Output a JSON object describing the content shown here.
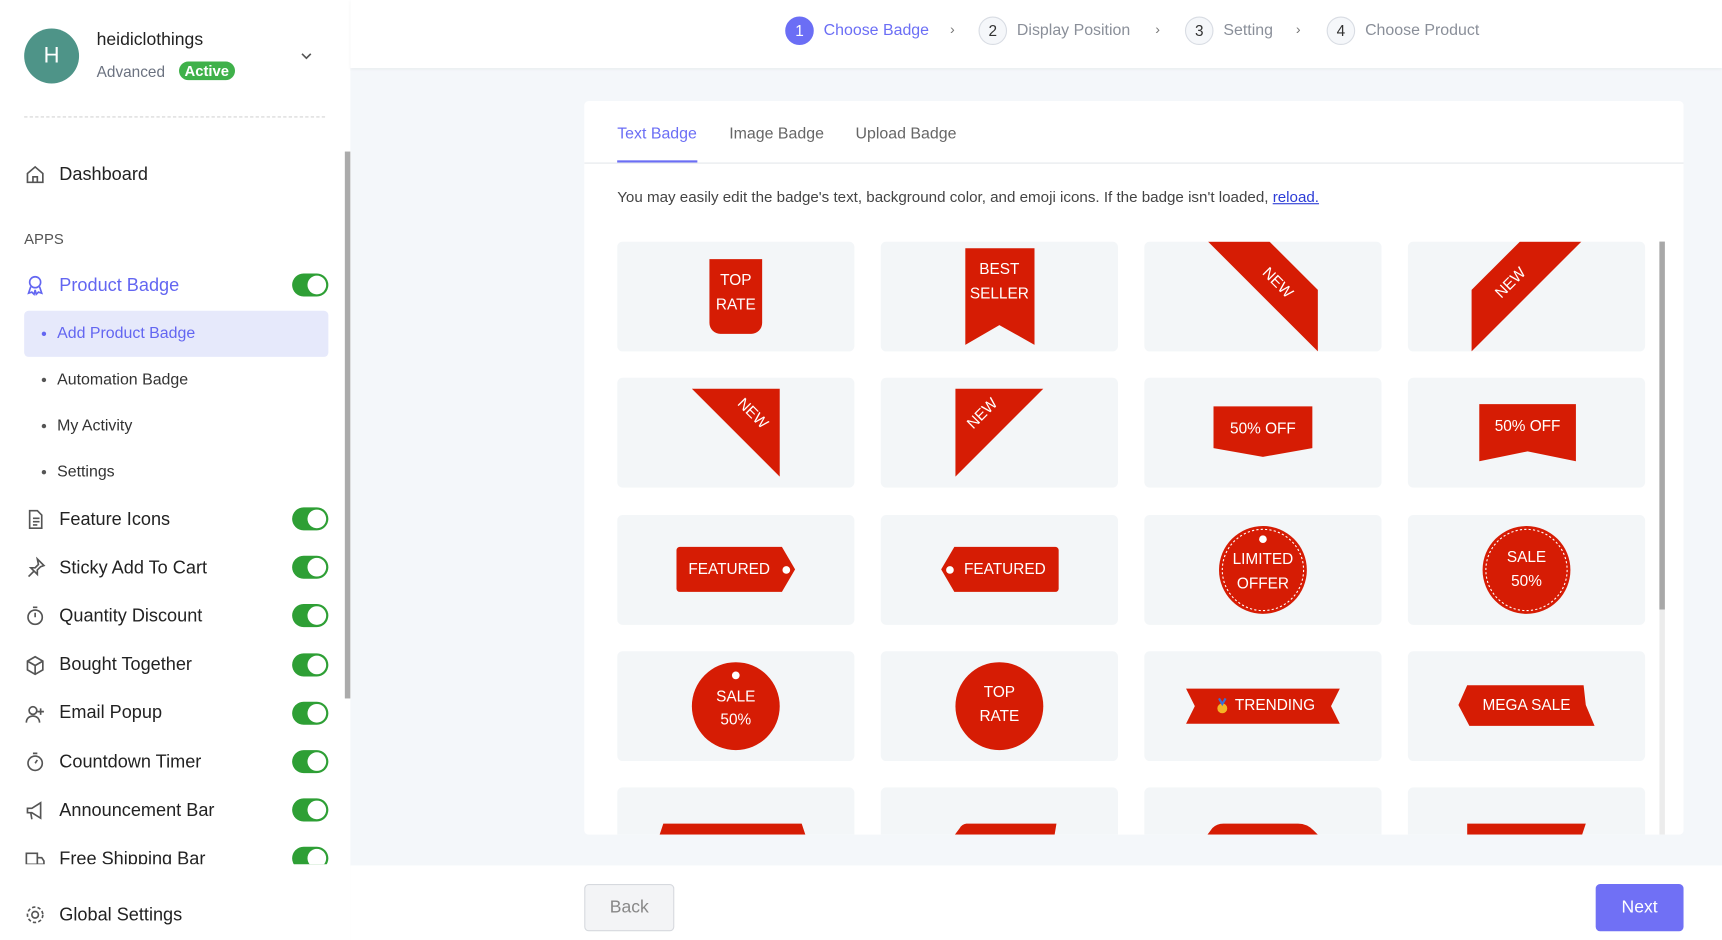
{
  "account": {
    "initial": "H",
    "store_name": "heidiclothings",
    "plan": "Advanced",
    "status": "Active"
  },
  "sidebar": {
    "dashboard": "Dashboard",
    "apps_heading": "APPS",
    "product_badge": {
      "label": "Product Badge",
      "enabled": true,
      "sub": [
        "Add Product Badge",
        "Automation Badge",
        "My Activity",
        "Settings"
      ]
    },
    "apps": [
      {
        "label": "Feature Icons",
        "icon": "file-icon",
        "enabled": true
      },
      {
        "label": "Sticky Add To Cart",
        "icon": "pin-icon",
        "enabled": true
      },
      {
        "label": "Quantity Discount",
        "icon": "stopwatch-icon",
        "enabled": true
      },
      {
        "label": "Bought Together",
        "icon": "box-icon",
        "enabled": true
      },
      {
        "label": "Email Popup",
        "icon": "user-plus-icon",
        "enabled": true
      },
      {
        "label": "Countdown Timer",
        "icon": "timer-icon",
        "enabled": true
      },
      {
        "label": "Announcement Bar",
        "icon": "megaphone-icon",
        "enabled": true
      },
      {
        "label": "Free Shipping Bar",
        "icon": "truck-icon",
        "enabled": true
      }
    ],
    "global_settings": "Global Settings"
  },
  "steps": [
    {
      "num": "1",
      "label": "Choose Badge",
      "active": true
    },
    {
      "num": "2",
      "label": "Display Position",
      "active": false
    },
    {
      "num": "3",
      "label": "Setting",
      "active": false
    },
    {
      "num": "4",
      "label": "Choose Product",
      "active": false
    }
  ],
  "tabs": [
    "Text Badge",
    "Image Badge",
    "Upload Badge"
  ],
  "active_tab": "Text Badge",
  "description": "You may easily edit the badge's text, background color, and emoji icons. If the badge isn't loaded,",
  "reload_link": "reload.",
  "badge_color": "#d61c04",
  "badges": [
    {
      "type": "rounded-tag",
      "lines": [
        "TOP",
        "RATE"
      ]
    },
    {
      "type": "ribbon",
      "lines": [
        "BEST",
        "SELLER"
      ]
    },
    {
      "type": "corner-right",
      "lines": [
        "NEW"
      ]
    },
    {
      "type": "corner-left",
      "lines": [
        "NEW"
      ]
    },
    {
      "type": "triangle-right",
      "lines": [
        "NEW"
      ]
    },
    {
      "type": "triangle-left",
      "lines": [
        "NEW"
      ]
    },
    {
      "type": "pointed-banner",
      "lines": [
        "50% OFF"
      ]
    },
    {
      "type": "notched-banner",
      "lines": [
        "50% OFF"
      ]
    },
    {
      "type": "tag-right",
      "lines": [
        "FEATURED"
      ]
    },
    {
      "type": "tag-left",
      "lines": [
        "FEATURED"
      ]
    },
    {
      "type": "circle-hole-dashed",
      "lines": [
        "LIMITED",
        "OFFER"
      ]
    },
    {
      "type": "circle-dashed",
      "lines": [
        "SALE",
        "50%"
      ]
    },
    {
      "type": "circle-hole",
      "lines": [
        "SALE",
        "50%"
      ]
    },
    {
      "type": "circle",
      "lines": [
        "TOP",
        "RATE"
      ]
    },
    {
      "type": "ribbon-banner",
      "lines": [
        "TRENDING"
      ],
      "emoji": "medal"
    },
    {
      "type": "hex-banner",
      "lines": [
        "MEGA SALE"
      ]
    },
    {
      "type": "partial-a",
      "lines": []
    },
    {
      "type": "partial-b",
      "lines": []
    },
    {
      "type": "partial-c",
      "lines": []
    },
    {
      "type": "partial-d",
      "lines": []
    }
  ],
  "footer": {
    "back": "Back",
    "next": "Next"
  },
  "colors": {
    "accent": "#6b6ef5",
    "toggle": "#2e9f35",
    "active_badge": "#3fb14a",
    "next_button": "#7070f5"
  }
}
